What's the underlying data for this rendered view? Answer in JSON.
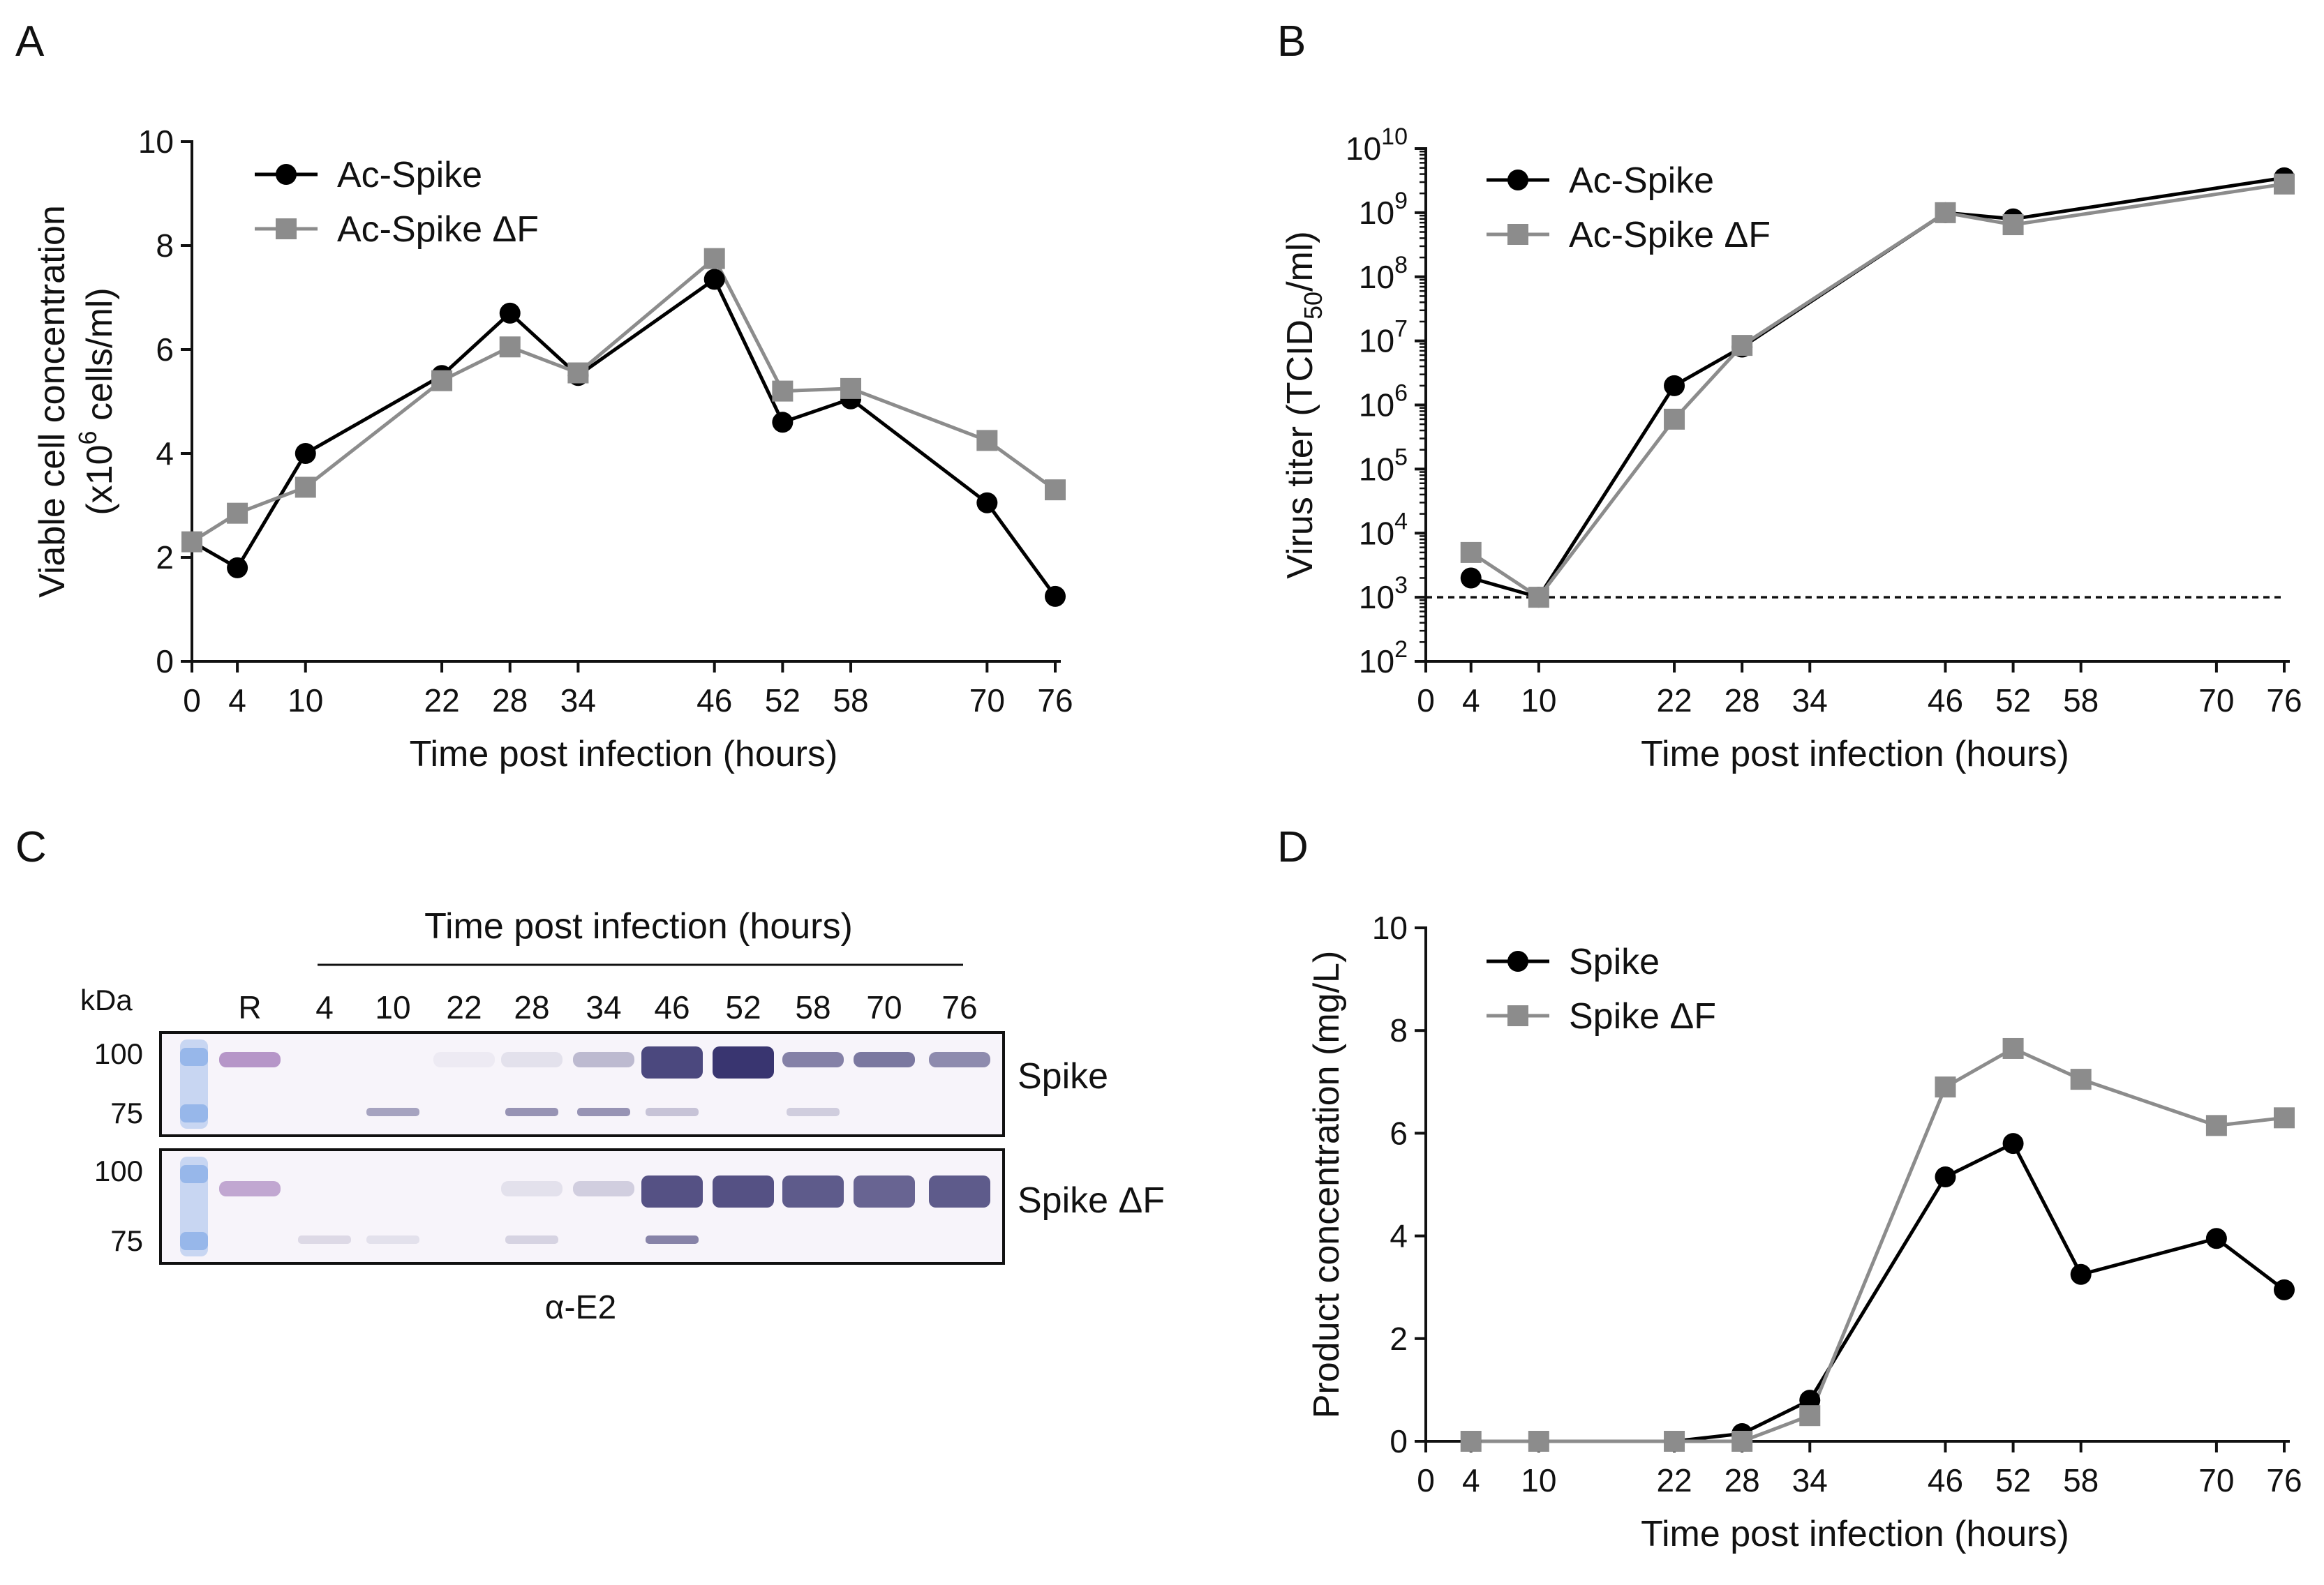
{
  "figure": {
    "panel_labels": [
      "A",
      "B",
      "C",
      "D"
    ],
    "colors": {
      "black_series": "#000000",
      "gray_series": "#8c8c8c",
      "axis": "#111111",
      "blot_band": "#2e2a68",
      "marker_lane": "#6f9fe3"
    }
  },
  "chart_data": [
    {
      "panel": "A",
      "type": "line",
      "title": "",
      "xlabel": "Time post infection (hours)",
      "ylabel_line1": "Viable cell concentration",
      "ylabel_line2_pre": "(x10",
      "ylabel_line2_sup": "6",
      "ylabel_line2_post": " cells/ml)",
      "x_ticks": [
        0,
        4,
        10,
        22,
        28,
        34,
        46,
        52,
        58,
        70,
        76
      ],
      "y_ticks": [
        0,
        2,
        4,
        6,
        8,
        10
      ],
      "xlim": [
        0,
        76
      ],
      "ylim": [
        0,
        10
      ],
      "legend_position": "top-left",
      "series": [
        {
          "name": "Ac-Spike",
          "marker": "circle",
          "color": "#000000",
          "x": [
            0,
            4,
            10,
            22,
            28,
            34,
            46,
            52,
            58,
            70,
            76
          ],
          "y": [
            2.3,
            1.8,
            4.0,
            5.5,
            6.7,
            5.5,
            7.35,
            4.6,
            5.05,
            3.05,
            1.25
          ]
        },
        {
          "name": "Ac-Spike ΔF",
          "marker": "square",
          "color": "#8c8c8c",
          "x": [
            0,
            4,
            10,
            22,
            28,
            34,
            46,
            52,
            58,
            70,
            76
          ],
          "y": [
            2.3,
            2.85,
            3.35,
            5.4,
            6.05,
            5.55,
            7.75,
            5.2,
            5.25,
            4.25,
            3.3
          ]
        }
      ]
    },
    {
      "panel": "B",
      "type": "line",
      "title": "",
      "xlabel": "Time post infection (hours)",
      "ylabel_pre": "Virus titer (TCID",
      "ylabel_sub": "50",
      "ylabel_post": "/ml)",
      "x_ticks": [
        0,
        4,
        10,
        22,
        28,
        34,
        46,
        52,
        58,
        70,
        76
      ],
      "y_scale": "log10",
      "y_tick_base": "10",
      "y_tick_exponents": [
        "2",
        "3",
        "4",
        "5",
        "6",
        "7",
        "8",
        "9",
        "10"
      ],
      "xlim": [
        0,
        76
      ],
      "ylim_log10": [
        2,
        10
      ],
      "detection_limit": 1000,
      "legend_position": "top-left",
      "series": [
        {
          "name": "Ac-Spike",
          "marker": "circle",
          "color": "#000000",
          "x": [
            4,
            10,
            22,
            28,
            46,
            52,
            76
          ],
          "y": [
            2000,
            1000,
            2000000,
            8000000,
            1000000000,
            800000000,
            3500000000
          ]
        },
        {
          "name": "Ac-Spike ΔF",
          "marker": "square",
          "color": "#8c8c8c",
          "x": [
            4,
            10,
            22,
            28,
            46,
            52,
            76
          ],
          "y": [
            5000,
            1000,
            600000,
            8500000,
            1000000000,
            650000000,
            2800000000
          ]
        }
      ]
    },
    {
      "panel": "C",
      "type": "western-blot",
      "header": "Time post infection (hours)",
      "kda_label": "kDa",
      "lane_labels": [
        "R",
        "4",
        "10",
        "22",
        "28",
        "34",
        "46",
        "52",
        "58",
        "70",
        "76"
      ],
      "mw_markers": [
        "100",
        "75"
      ],
      "blots": [
        {
          "label": "Spike",
          "lane_upper_intensity": [
            0.55,
            0,
            0,
            0.05,
            0.1,
            0.3,
            0.9,
            1.0,
            0.6,
            0.65,
            0.55
          ],
          "lane_lower_intensity": [
            0,
            0,
            0.25,
            0,
            0.3,
            0.3,
            0.15,
            0,
            0.12,
            0,
            0
          ]
        },
        {
          "label": "Spike ΔF",
          "lane_upper_intensity": [
            0.45,
            0,
            0,
            0,
            0.1,
            0.2,
            0.85,
            0.85,
            0.8,
            0.75,
            0.8
          ],
          "lane_lower_intensity": [
            0,
            0.08,
            0.06,
            0,
            0.1,
            0,
            0.35,
            0,
            0,
            0,
            0
          ]
        }
      ],
      "antibody": "α-E2"
    },
    {
      "panel": "D",
      "type": "line",
      "title": "",
      "xlabel": "Time post infection (hours)",
      "ylabel": "Product concentration (mg/L)",
      "x_ticks": [
        0,
        4,
        10,
        22,
        28,
        34,
        46,
        52,
        58,
        70,
        76
      ],
      "y_ticks": [
        0,
        2,
        4,
        6,
        8,
        10
      ],
      "xlim": [
        0,
        76
      ],
      "ylim": [
        0,
        10
      ],
      "legend_position": "top-left",
      "series": [
        {
          "name": "Spike",
          "marker": "circle",
          "color": "#000000",
          "x": [
            4,
            10,
            22,
            28,
            34,
            46,
            52,
            58,
            70,
            76
          ],
          "y": [
            0,
            0,
            0,
            0.15,
            0.8,
            5.15,
            5.8,
            3.25,
            3.95,
            2.95
          ]
        },
        {
          "name": "Spike ΔF",
          "marker": "square",
          "color": "#8c8c8c",
          "x": [
            4,
            10,
            22,
            28,
            34,
            46,
            52,
            58,
            70,
            76
          ],
          "y": [
            0,
            0,
            0,
            0,
            0.5,
            6.9,
            7.65,
            7.05,
            6.15,
            6.3
          ]
        }
      ]
    }
  ]
}
